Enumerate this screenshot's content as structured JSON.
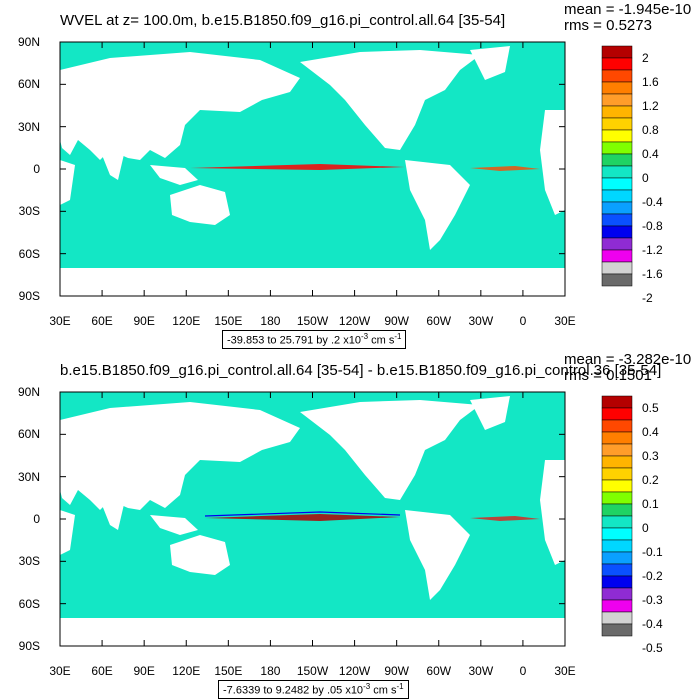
{
  "colors": {
    "ocean": "#13e7c5",
    "land": "#ffffff",
    "frame": "#000000"
  },
  "y_ticks": [
    "90N",
    "60N",
    "30N",
    "0",
    "30S",
    "60S",
    "90S"
  ],
  "x_ticks": [
    "30E",
    "60E",
    "90E",
    "120E",
    "150E",
    "180",
    "150W",
    "120W",
    "90W",
    "60W",
    "30W",
    "0",
    "30E"
  ],
  "colorbar_colors": [
    "#6a6a6a",
    "#d2d2d2",
    "#ef00ef",
    "#8f2bd3",
    "#0000ef",
    "#0a50ff",
    "#0aa0ff",
    "#00d7ff",
    "#00ffff",
    "#13e7c5",
    "#1fd363",
    "#80ff00",
    "#ffff00",
    "#ffd200",
    "#ffb400",
    "#ff9d2a",
    "#ff7f00",
    "#ff4800",
    "#ff0000",
    "#b40000"
  ],
  "panels": [
    {
      "title": "WVEL at z= 100.0m, b.e15.B1850.f09_g16.pi_control.all.64 [35-54]",
      "mean": "mean = -1.945e-10",
      "rms": "rms = 0.5273",
      "info_range": "-39.853 to 25.791 by .2 x10",
      "info_exp": "-3",
      "info_unit": " cm s",
      "info_unit_exp": "-1",
      "colorbar_labels": [
        "2",
        "1.6",
        "1.2",
        "0.8",
        "0.4",
        "0",
        "-0.4",
        "-0.8",
        "-1.2",
        "-1.6",
        "-2"
      ]
    },
    {
      "title": "b.e15.B1850.f09_g16.pi_control.all.64 [35-54] - b.e15.B1850.f09_g16.pi_control.36 [35-54]",
      "mean": "mean = -3.282e-10",
      "rms": "rms = 0.1501",
      "info_range": "-7.6339 to 9.2482 by .05 x10",
      "info_exp": "-3",
      "info_unit": " cm s",
      "info_unit_exp": "-1",
      "colorbar_labels": [
        "0.5",
        "0.4",
        "0.3",
        "0.2",
        "0.1",
        "0",
        "-0.1",
        "-0.2",
        "-0.3",
        "-0.4",
        "-0.5"
      ]
    }
  ]
}
